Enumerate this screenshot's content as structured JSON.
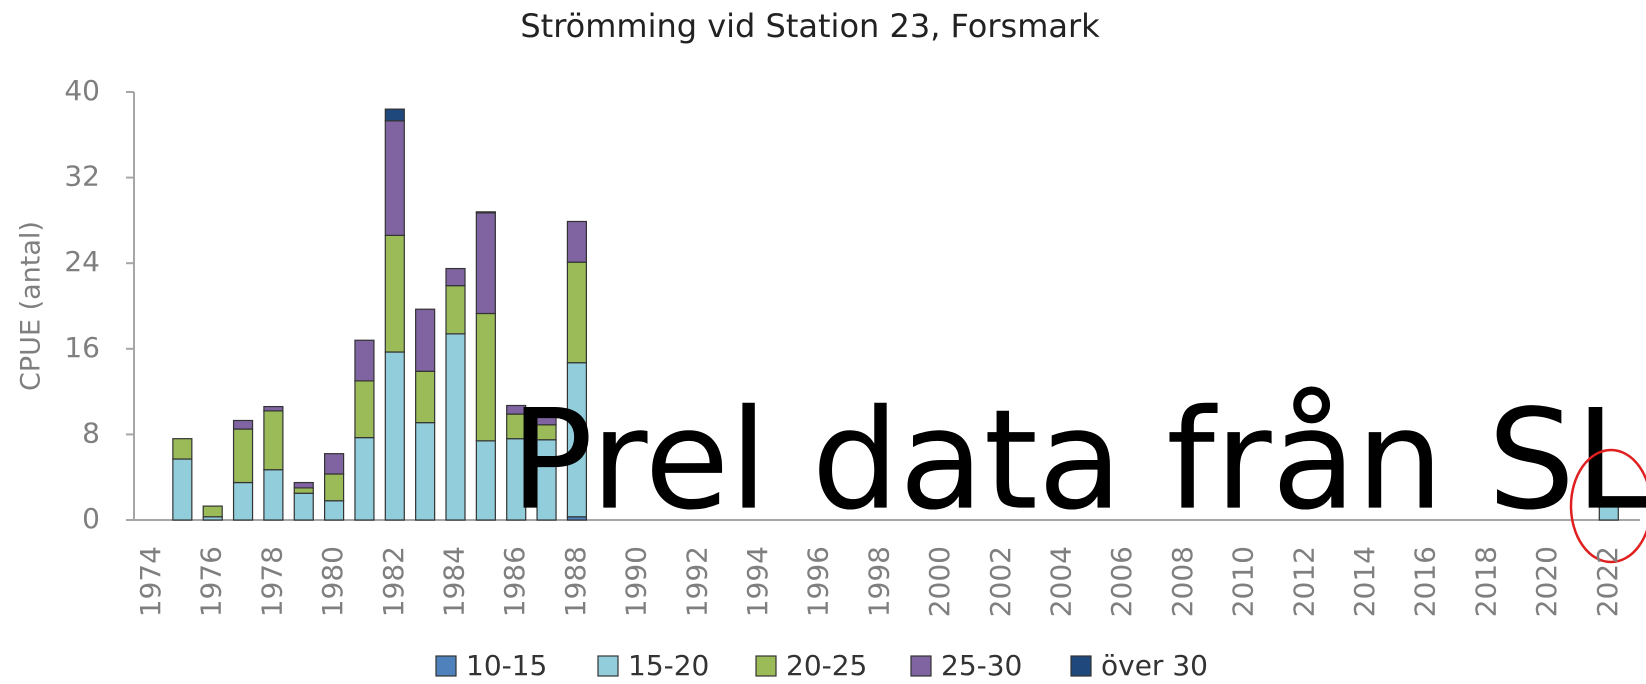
{
  "chart_data": {
    "type": "stacked_bar",
    "title": "Strömming vid Station 23, Forsmark",
    "y_label": "CPUE (antal)",
    "annotations": [
      "Prel data från SLU"
    ],
    "categories": [
      "1974",
      null,
      "1976",
      null,
      "1978",
      null,
      "1980",
      null,
      "1982",
      null,
      "1984",
      null,
      "1986",
      null,
      "1988",
      null,
      "1990",
      null,
      "1992",
      null,
      "1994",
      null,
      "1996",
      null,
      "1998",
      null,
      "2000",
      null,
      "2002",
      null,
      "2004",
      null,
      "2006",
      null,
      "2008",
      null,
      "2010",
      null,
      "2012",
      null,
      "2014",
      null,
      "2016",
      null,
      "2018",
      null,
      "2020",
      null,
      "2022"
    ],
    "series": [
      {
        "name": "10-15",
        "color": "#4f81bd",
        "values": [
          null,
          0,
          0,
          0,
          0,
          0,
          0,
          0,
          0,
          0,
          0,
          0,
          0,
          0,
          0.3,
          null,
          null,
          null,
          null,
          null,
          null,
          null,
          null,
          null,
          null,
          null,
          null,
          null,
          null,
          null,
          null,
          null,
          null,
          null,
          null,
          null,
          null,
          null,
          null,
          null,
          null,
          null,
          null,
          null,
          null,
          null,
          null,
          null,
          0
        ]
      },
      {
        "name": "15-20",
        "color": "#92cddc",
        "values": [
          null,
          5.7,
          0.3,
          3.5,
          4.7,
          2.5,
          1.8,
          7.7,
          15.7,
          9.1,
          17.4,
          7.4,
          7.6,
          7.5,
          14.4,
          null,
          null,
          null,
          null,
          null,
          null,
          null,
          null,
          null,
          null,
          null,
          null,
          null,
          null,
          null,
          null,
          null,
          null,
          null,
          null,
          null,
          null,
          null,
          null,
          null,
          null,
          null,
          null,
          null,
          null,
          null,
          null,
          null,
          1.7
        ]
      },
      {
        "name": "20-25",
        "color": "#9bbb59",
        "values": [
          null,
          1.9,
          1.0,
          5.0,
          5.5,
          0.5,
          2.5,
          5.3,
          10.9,
          4.8,
          4.5,
          11.9,
          2.3,
          1.4,
          9.4,
          null,
          null,
          null,
          null,
          null,
          null,
          null,
          null,
          null,
          null,
          null,
          null,
          null,
          null,
          null,
          null,
          null,
          null,
          null,
          null,
          null,
          null,
          null,
          null,
          null,
          null,
          null,
          null,
          null,
          null,
          null,
          null,
          null,
          0
        ]
      },
      {
        "name": "25-30",
        "color": "#8064a2",
        "values": [
          null,
          0,
          0,
          0.8,
          0.4,
          0.5,
          1.9,
          3.8,
          10.7,
          5.8,
          1.6,
          9.4,
          0.8,
          0.7,
          3.8,
          null,
          null,
          null,
          null,
          null,
          null,
          null,
          null,
          null,
          null,
          null,
          null,
          null,
          null,
          null,
          null,
          null,
          null,
          null,
          null,
          null,
          null,
          null,
          null,
          null,
          null,
          null,
          null,
          null,
          null,
          null,
          null,
          null,
          0
        ]
      },
      {
        "name": "över 30",
        "color": "#1f497d",
        "values": [
          null,
          0,
          0,
          0,
          0,
          0,
          0,
          0,
          1.1,
          0,
          0,
          0.1,
          0,
          0,
          0,
          null,
          null,
          null,
          null,
          null,
          null,
          null,
          null,
          null,
          null,
          null,
          null,
          null,
          null,
          null,
          null,
          null,
          null,
          null,
          null,
          null,
          null,
          null,
          null,
          null,
          null,
          null,
          null,
          null,
          null,
          null,
          null,
          null,
          0
        ]
      }
    ],
    "ylim": [
      0,
      40
    ],
    "yticks": [
      0,
      8,
      16,
      24,
      32,
      40
    ],
    "grid": false
  }
}
